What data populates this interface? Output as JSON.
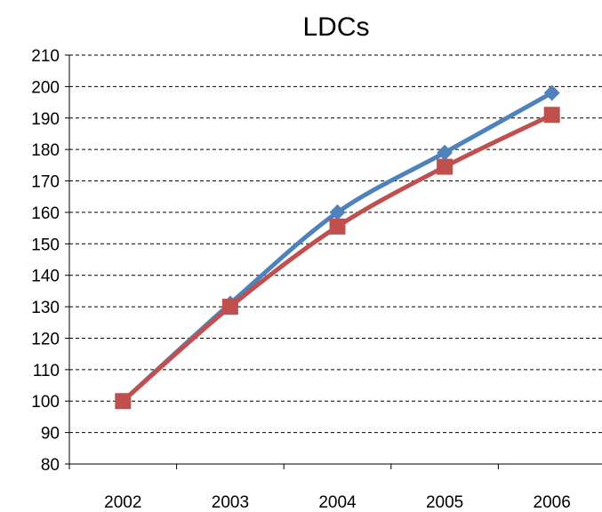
{
  "chart_data": {
    "type": "line",
    "title": "LDCs",
    "xlabel": "",
    "ylabel": "",
    "categories": [
      "2002",
      "2003",
      "2004",
      "2005",
      "2006"
    ],
    "y_ticks": [
      80,
      90,
      100,
      110,
      120,
      130,
      140,
      150,
      160,
      170,
      180,
      190,
      200,
      210
    ],
    "ylim": [
      80,
      210
    ],
    "grid": true,
    "legend": "none",
    "series": [
      {
        "values": [
          100,
          131,
          160,
          179,
          198
        ],
        "color": "#4F81BD",
        "marker": "diamond"
      },
      {
        "values": [
          100,
          130,
          155.5,
          174.5,
          191
        ],
        "color": "#C0504D",
        "marker": "square"
      }
    ]
  }
}
